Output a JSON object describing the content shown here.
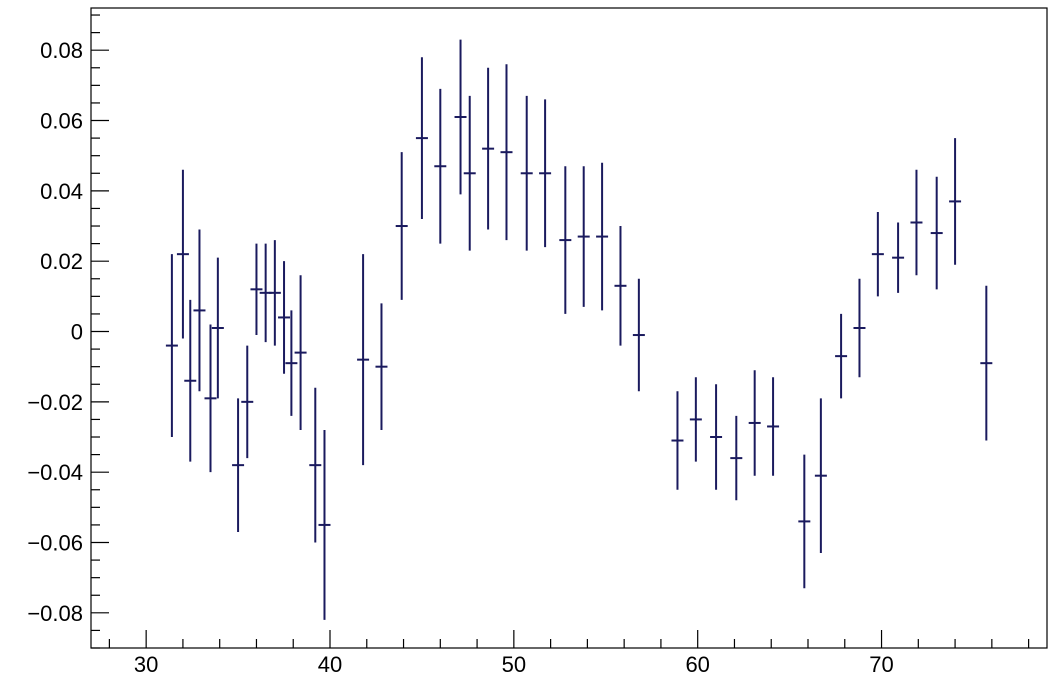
{
  "chart_data": {
    "type": "scatter",
    "title": "",
    "xlabel": "",
    "ylabel": "",
    "xlim": [
      27,
      79
    ],
    "ylim": [
      -0.09,
      0.092
    ],
    "x_major_ticks": [
      30,
      40,
      50,
      60,
      70
    ],
    "x_tick_labels": [
      "30",
      "40",
      "50",
      "60",
      "70"
    ],
    "y_major_ticks": [
      -0.08,
      -0.06,
      -0.04,
      -0.02,
      0,
      0.02,
      0.04,
      0.06,
      0.08
    ],
    "y_tick_labels": [
      "−0.08",
      "−0.06",
      "−0.04",
      "−0.02",
      "0",
      "0.02",
      "0.04",
      "0.06",
      "0.08"
    ],
    "grid": false,
    "marker_color": "#1a1a5e",
    "series": [
      {
        "points": [
          {
            "x": 31.4,
            "y": -0.004,
            "err": 0.026
          },
          {
            "x": 32.0,
            "y": 0.022,
            "err": 0.024
          },
          {
            "x": 32.4,
            "y": -0.014,
            "err": 0.023
          },
          {
            "x": 32.9,
            "y": 0.006,
            "err": 0.023
          },
          {
            "x": 33.5,
            "y": -0.019,
            "err": 0.021
          },
          {
            "x": 33.9,
            "y": 0.001,
            "err": 0.02
          },
          {
            "x": 35.0,
            "y": -0.038,
            "err": 0.019
          },
          {
            "x": 35.5,
            "y": -0.02,
            "err": 0.016
          },
          {
            "x": 36.0,
            "y": 0.012,
            "err": 0.013
          },
          {
            "x": 36.5,
            "y": 0.011,
            "err": 0.014
          },
          {
            "x": 37.0,
            "y": 0.011,
            "err": 0.015
          },
          {
            "x": 37.5,
            "y": 0.004,
            "err": 0.016
          },
          {
            "x": 37.9,
            "y": -0.009,
            "err": 0.015
          },
          {
            "x": 38.4,
            "y": -0.006,
            "err": 0.022
          },
          {
            "x": 39.2,
            "y": -0.038,
            "err": 0.022
          },
          {
            "x": 39.7,
            "y": -0.055,
            "err": 0.027
          },
          {
            "x": 41.8,
            "y": -0.008,
            "err": 0.03
          },
          {
            "x": 42.8,
            "y": -0.01,
            "err": 0.018
          },
          {
            "x": 43.9,
            "y": 0.03,
            "err": 0.021
          },
          {
            "x": 45.0,
            "y": 0.055,
            "err": 0.023
          },
          {
            "x": 46.0,
            "y": 0.047,
            "err": 0.022
          },
          {
            "x": 47.1,
            "y": 0.061,
            "err": 0.022
          },
          {
            "x": 47.6,
            "y": 0.045,
            "err": 0.022
          },
          {
            "x": 48.6,
            "y": 0.052,
            "err": 0.023
          },
          {
            "x": 49.6,
            "y": 0.051,
            "err": 0.025
          },
          {
            "x": 50.7,
            "y": 0.045,
            "err": 0.022
          },
          {
            "x": 51.7,
            "y": 0.045,
            "err": 0.021
          },
          {
            "x": 52.8,
            "y": 0.026,
            "err": 0.021
          },
          {
            "x": 53.8,
            "y": 0.027,
            "err": 0.02
          },
          {
            "x": 54.8,
            "y": 0.027,
            "err": 0.021
          },
          {
            "x": 55.8,
            "y": 0.013,
            "err": 0.017
          },
          {
            "x": 56.8,
            "y": -0.001,
            "err": 0.016
          },
          {
            "x": 58.9,
            "y": -0.031,
            "err": 0.014
          },
          {
            "x": 59.9,
            "y": -0.025,
            "err": 0.012
          },
          {
            "x": 61.0,
            "y": -0.03,
            "err": 0.015
          },
          {
            "x": 62.1,
            "y": -0.036,
            "err": 0.012
          },
          {
            "x": 63.1,
            "y": -0.026,
            "err": 0.015
          },
          {
            "x": 64.1,
            "y": -0.027,
            "err": 0.014
          },
          {
            "x": 65.8,
            "y": -0.054,
            "err": 0.019
          },
          {
            "x": 66.7,
            "y": -0.041,
            "err": 0.022
          },
          {
            "x": 67.8,
            "y": -0.007,
            "err": 0.012
          },
          {
            "x": 68.8,
            "y": 0.001,
            "err": 0.014
          },
          {
            "x": 69.8,
            "y": 0.022,
            "err": 0.012
          },
          {
            "x": 70.9,
            "y": 0.021,
            "err": 0.01
          },
          {
            "x": 71.9,
            "y": 0.031,
            "err": 0.015
          },
          {
            "x": 73.0,
            "y": 0.028,
            "err": 0.016
          },
          {
            "x": 74.0,
            "y": 0.037,
            "err": 0.018
          },
          {
            "x": 75.7,
            "y": -0.009,
            "err": 0.022
          }
        ]
      }
    ]
  }
}
